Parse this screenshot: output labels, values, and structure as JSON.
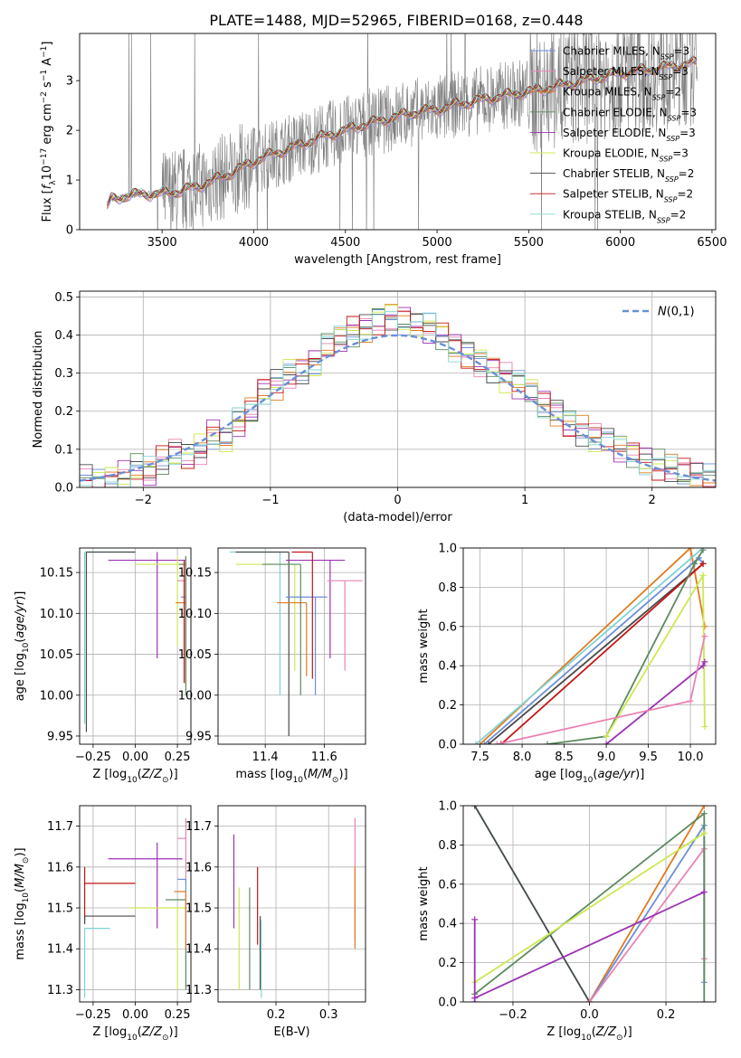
{
  "figure_title": "PLATE=1488, MJD=52965, FIBERID=0168, z=0.448",
  "colors": {
    "chabrier_miles": "#6a8fd8",
    "salpeter_miles": "#e883b4",
    "kroupa_miles": "#e07b1f",
    "chabrier_elodie": "#5b8a5e",
    "salpeter_elodie": "#9b32b3",
    "kroupa_elodie": "#cde84f",
    "chabrier_stelib": "#4a4a4a",
    "salpeter_stelib": "#c41515",
    "kroupa_stelib": "#7fd3d3",
    "data": "#808080",
    "gaussian": "#6a8fd8"
  },
  "chart_data": [
    {
      "id": "spectrum",
      "type": "line",
      "title": "PLATE=1488, MJD=52965, FIBERID=0168, z=0.448",
      "xlabel": "wavelength [Angstrom, rest frame]",
      "ylabel": "Flux [f_λ 10^-17 erg cm^-2 s^-1 A^-1]",
      "xlim": [
        3050,
        6520
      ],
      "ylim": [
        0,
        3.95
      ],
      "xticks": [
        3500,
        4000,
        4500,
        5000,
        5500,
        6000,
        6500
      ],
      "yticks": [
        0,
        1,
        2,
        3
      ],
      "legend_position": "upper-right",
      "model_curve": {
        "x": [
          3200,
          3220,
          3300,
          3400,
          3500,
          3600,
          3700,
          3800,
          3900,
          4000,
          4100,
          4200,
          4300,
          4400,
          4500,
          4600,
          4700,
          4800,
          4900,
          5000,
          5100,
          5200,
          5300,
          5400,
          5500,
          5600,
          5700,
          5800,
          5900,
          6000,
          6100,
          6200,
          6300,
          6400
        ],
        "y": [
          0.45,
          0.6,
          0.68,
          0.72,
          0.72,
          0.78,
          0.88,
          1.02,
          1.18,
          1.38,
          1.52,
          1.64,
          1.78,
          1.9,
          2.0,
          2.12,
          2.2,
          2.3,
          2.38,
          2.42,
          2.52,
          2.58,
          2.66,
          2.72,
          2.78,
          2.85,
          2.92,
          3.0,
          3.08,
          3.15,
          3.2,
          3.25,
          3.3,
          3.35
        ]
      },
      "series": [
        {
          "name": "Chabrier MILES, N_SSP=3",
          "color_key": "chabrier_miles"
        },
        {
          "name": "Salpeter MILES, N_SSP=3",
          "color_key": "salpeter_miles"
        },
        {
          "name": "Kroupa MILES, N_SSP=2",
          "color_key": "kroupa_miles"
        },
        {
          "name": "Chabrier ELODIE, N_SSP=3",
          "color_key": "chabrier_elodie"
        },
        {
          "name": "Salpeter ELODIE, N_SSP=3",
          "color_key": "salpeter_elodie"
        },
        {
          "name": "Kroupa ELODIE, N_SSP=3",
          "color_key": "kroupa_elodie"
        },
        {
          "name": "Chabrier STELIB, N_SSP=2",
          "color_key": "chabrier_stelib"
        },
        {
          "name": "Salpeter STELIB, N_SSP=2",
          "color_key": "salpeter_stelib"
        },
        {
          "name": "Kroupa STELIB, N_SSP=2",
          "color_key": "kroupa_stelib"
        }
      ]
    },
    {
      "id": "residuals",
      "type": "line",
      "xlabel": "(data-model)/error",
      "ylabel": "Normed distribution",
      "xlim": [
        -2.5,
        2.5
      ],
      "ylim": [
        0,
        0.515
      ],
      "xticks": [
        -2,
        -1,
        0,
        1,
        2
      ],
      "yticks": [
        0.0,
        0.1,
        0.2,
        0.3,
        0.4,
        0.5
      ],
      "grid": true,
      "legend_position": "upper-right",
      "legend_entry": "N(0,1)",
      "bin_width": 0.1,
      "bin_start": -2.5,
      "histogram_values": [
        0.02,
        0.01,
        0.02,
        0.03,
        0.05,
        0.04,
        0.07,
        0.09,
        0.08,
        0.1,
        0.14,
        0.13,
        0.17,
        0.2,
        0.25,
        0.27,
        0.3,
        0.31,
        0.33,
        0.37,
        0.39,
        0.41,
        0.42,
        0.44,
        0.45,
        0.44,
        0.43,
        0.42,
        0.4,
        0.37,
        0.35,
        0.33,
        0.31,
        0.29,
        0.27,
        0.25,
        0.22,
        0.2,
        0.17,
        0.15,
        0.13,
        0.12,
        0.1,
        0.09,
        0.07,
        0.06,
        0.05,
        0.04,
        0.03,
        0.02
      ]
    },
    {
      "id": "age-vs-Z",
      "type": "scatter",
      "xlabel": "Z [log10(Z/Z⊙)]",
      "ylabel": "age [log10(age/yr)]",
      "xlim": [
        -0.33,
        0.33
      ],
      "ylim": [
        9.94,
        10.18
      ],
      "xticks": [
        -0.25,
        0.0,
        0.25
      ],
      "yticks": [
        9.95,
        10.0,
        10.05,
        10.1,
        10.15
      ],
      "grid": true,
      "points": [
        {
          "color_key": "kroupa_stelib",
          "x": -0.3,
          "y": 10.175,
          "xerr": [
            0.0,
            0.3
          ],
          "yerr": [
            0.21,
            0.0
          ]
        },
        {
          "color_key": "chabrier_stelib",
          "x": -0.29,
          "y": 10.175,
          "xerr": [
            0.0,
            0.29
          ],
          "yerr": [
            0.22,
            0.0
          ]
        },
        {
          "color_key": "salpeter_elodie",
          "x": 0.13,
          "y": 10.165,
          "xerr": [
            0.29,
            0.17
          ],
          "yerr": [
            0.12,
            0.01
          ]
        },
        {
          "color_key": "kroupa_elodie",
          "x": 0.25,
          "y": 10.16,
          "xerr": [
            0.25,
            0.05
          ],
          "yerr": [
            0.1,
            0.01
          ]
        },
        {
          "color_key": "salpeter_miles",
          "x": 0.3,
          "y": 10.14,
          "xerr": [
            0.05,
            0.0
          ],
          "yerr": [
            0.1,
            0.03
          ]
        },
        {
          "color_key": "chabrier_miles",
          "x": 0.3,
          "y": 10.12,
          "xerr": [
            0.03,
            0.0
          ],
          "yerr": [
            0.1,
            0.05
          ]
        },
        {
          "color_key": "kroupa_miles",
          "x": 0.3,
          "y": 10.113,
          "xerr": [
            0.06,
            0.0
          ],
          "yerr": [
            0.1,
            0.05
          ]
        },
        {
          "color_key": "chabrier_elodie",
          "x": 0.3,
          "y": 10.16,
          "xerr": [
            0.04,
            0.0
          ],
          "yerr": [
            0.16,
            0.01
          ]
        },
        {
          "color_key": "salpeter_stelib",
          "x": 0.29,
          "y": 10.165,
          "xerr": [
            0.0,
            0.0
          ],
          "yerr": [
            0.15,
            0.0
          ]
        }
      ]
    },
    {
      "id": "age-vs-mass",
      "type": "scatter",
      "xlabel": "mass [log10(M/M⊙)]",
      "xlim": [
        11.24,
        11.74
      ],
      "ylim": [
        9.94,
        10.18
      ],
      "xticks": [
        11.4,
        11.6
      ],
      "yticks": [
        9.95,
        10.0,
        10.05,
        10.1,
        10.15
      ],
      "grid": true,
      "points": [
        {
          "color_key": "kroupa_stelib",
          "x": 11.45,
          "y": 10.175,
          "xerr": [
            0.17,
            0.0
          ],
          "yerr": [
            0.175,
            0.0
          ]
        },
        {
          "color_key": "chabrier_stelib",
          "x": 11.48,
          "y": 10.175,
          "xerr": [
            0.18,
            0.0
          ],
          "yerr": [
            0.225,
            0.0
          ]
        },
        {
          "color_key": "salpeter_elodie",
          "x": 11.62,
          "y": 10.165,
          "xerr": [
            0.15,
            0.05
          ],
          "yerr": [
            0.12,
            0.0
          ]
        },
        {
          "color_key": "kroupa_elodie",
          "x": 11.5,
          "y": 10.16,
          "xerr": [
            0.2,
            0.0
          ],
          "yerr": [
            0.13,
            0.0
          ]
        },
        {
          "color_key": "salpeter_miles",
          "x": 11.67,
          "y": 10.14,
          "xerr": [
            0.06,
            0.06
          ],
          "yerr": [
            0.11,
            0.0
          ]
        },
        {
          "color_key": "chabrier_miles",
          "x": 11.57,
          "y": 10.12,
          "xerr": [
            0.1,
            0.04
          ],
          "yerr": [
            0.12,
            0.0
          ]
        },
        {
          "color_key": "kroupa_miles",
          "x": 11.54,
          "y": 10.113,
          "xerr": [
            0.1,
            0.0
          ],
          "yerr": [
            0.09,
            0.0
          ]
        },
        {
          "color_key": "chabrier_elodie",
          "x": 11.52,
          "y": 10.16,
          "xerr": [
            0.13,
            0.0
          ],
          "yerr": [
            0.16,
            0.0
          ]
        },
        {
          "color_key": "salpeter_stelib",
          "x": 11.56,
          "y": 10.175,
          "xerr": [
            0.07,
            0.0
          ],
          "yerr": [
            0.155,
            0.0
          ]
        }
      ]
    },
    {
      "id": "weight-vs-age",
      "type": "line",
      "xlabel": "age [log10(age/yr)]",
      "ylabel": "mass weight",
      "xlim": [
        7.3,
        10.3
      ],
      "ylim": [
        0.0,
        1.0
      ],
      "xticks": [
        7.5,
        8.0,
        8.5,
        9.0,
        9.5,
        10.0
      ],
      "yticks": [
        0.0,
        0.2,
        0.4,
        0.6,
        0.8,
        1.0
      ],
      "grid": true,
      "series": [
        {
          "color_key": "kroupa_miles",
          "x": [
            7.5,
            10.0,
            10.17
          ],
          "y": [
            0.0,
            1.0,
            0.6
          ]
        },
        {
          "color_key": "kroupa_stelib",
          "x": [
            7.45,
            10.15
          ],
          "y": [
            0.0,
            1.0
          ]
        },
        {
          "color_key": "chabrier_miles",
          "x": [
            7.55,
            10.1,
            10.15
          ],
          "y": [
            0.0,
            0.95,
            0.92
          ]
        },
        {
          "color_key": "chabrier_stelib",
          "x": [
            7.6,
            10.15
          ],
          "y": [
            0.0,
            0.92
          ]
        },
        {
          "color_key": "salpeter_stelib",
          "x": [
            7.75,
            10.15
          ],
          "y": [
            0.0,
            0.92
          ]
        },
        {
          "color_key": "chabrier_elodie",
          "x": [
            8.3,
            9.0,
            10.05,
            10.15
          ],
          "y": [
            0.0,
            0.04,
            0.92,
            0.99
          ]
        },
        {
          "color_key": "kroupa_elodie",
          "x": [
            9.0,
            10.15,
            10.17
          ],
          "y": [
            0.04,
            0.86,
            0.09
          ]
        },
        {
          "color_key": "salpeter_elodie",
          "x": [
            9.0,
            10.15,
            10.17
          ],
          "y": [
            0.0,
            0.4,
            0.42
          ]
        },
        {
          "color_key": "salpeter_miles",
          "x": [
            7.7,
            10.0,
            10.17
          ],
          "y": [
            0.0,
            0.22,
            0.55
          ]
        }
      ]
    },
    {
      "id": "mass-vs-Z",
      "type": "scatter",
      "xlabel": "Z [log10(Z/Z⊙)]",
      "ylabel": "mass [log10(M/M⊙)]",
      "xlim": [
        -0.33,
        0.33
      ],
      "ylim": [
        11.27,
        11.75
      ],
      "xticks": [
        -0.25,
        0.0,
        0.25
      ],
      "yticks": [
        11.3,
        11.4,
        11.5,
        11.6,
        11.7
      ],
      "grid": true,
      "points": [
        {
          "color_key": "salpeter_stelib",
          "x": -0.3,
          "y": 11.56,
          "xerr": [
            0.0,
            0.3
          ],
          "yerr": [
            0.09,
            0.04
          ]
        },
        {
          "color_key": "chabrier_stelib",
          "x": -0.3,
          "y": 11.48,
          "xerr": [
            0.0,
            0.3
          ],
          "yerr": [
            0.02,
            0.0
          ]
        },
        {
          "color_key": "kroupa_stelib",
          "x": -0.3,
          "y": 11.45,
          "xerr": [
            0.0,
            0.15
          ],
          "yerr": [
            0.17,
            0.0
          ]
        },
        {
          "color_key": "salpeter_elodie",
          "x": 0.13,
          "y": 11.62,
          "xerr": [
            0.29,
            0.15
          ],
          "yerr": [
            0.17,
            0.04
          ]
        },
        {
          "color_key": "kroupa_elodie",
          "x": 0.25,
          "y": 11.5,
          "xerr": [
            0.28,
            0.05
          ],
          "yerr": [
            0.2,
            0.0
          ]
        },
        {
          "color_key": "chabrier_elodie",
          "x": 0.3,
          "y": 11.52,
          "xerr": [
            0.12,
            0.0
          ],
          "yerr": [
            0.22,
            0.0
          ]
        },
        {
          "color_key": "salpeter_miles",
          "x": 0.3,
          "y": 11.67,
          "xerr": [
            0.05,
            0.0
          ],
          "yerr": [
            0.11,
            0.05
          ]
        },
        {
          "color_key": "chabrier_miles",
          "x": 0.3,
          "y": 11.57,
          "xerr": [
            0.05,
            0.0
          ],
          "yerr": [
            0.1,
            0.0
          ]
        },
        {
          "color_key": "kroupa_miles",
          "x": 0.3,
          "y": 11.54,
          "xerr": [
            0.07,
            0.0
          ],
          "yerr": [
            0.14,
            0.0
          ]
        }
      ]
    },
    {
      "id": "mass-vs-EBV",
      "type": "scatter",
      "xlabel": "E(B-V)",
      "xlim": [
        0.09,
        0.37
      ],
      "ylim": [
        11.27,
        11.75
      ],
      "xticks": [
        0.2,
        0.3
      ],
      "yticks": [
        11.3,
        11.4,
        11.5,
        11.6,
        11.7
      ],
      "grid": true,
      "points": [
        {
          "color_key": "salpeter_elodie",
          "x": 0.12,
          "y": 11.6,
          "yerr": [
            0.15,
            0.08
          ]
        },
        {
          "color_key": "kroupa_elodie",
          "x": 0.13,
          "y": 11.45,
          "yerr": [
            0.15,
            0.1
          ]
        },
        {
          "color_key": "chabrier_elodie",
          "x": 0.15,
          "y": 11.45,
          "yerr": [
            0.15,
            0.1
          ]
        },
        {
          "color_key": "salpeter_stelib",
          "x": 0.165,
          "y": 11.55,
          "yerr": [
            0.14,
            0.05
          ]
        },
        {
          "color_key": "chabrier_stelib",
          "x": 0.17,
          "y": 11.4,
          "yerr": [
            0.1,
            0.08
          ]
        },
        {
          "color_key": "kroupa_stelib",
          "x": 0.172,
          "y": 11.4,
          "yerr": [
            0.12,
            0.07
          ]
        },
        {
          "color_key": "salpeter_miles",
          "x": 0.35,
          "y": 11.6,
          "yerr": [
            0.18,
            0.12
          ]
        },
        {
          "color_key": "kroupa_miles",
          "x": 0.35,
          "y": 11.5,
          "yerr": [
            0.1,
            0.1
          ]
        }
      ]
    },
    {
      "id": "weight-vs-Z",
      "type": "line",
      "xlabel": "Z [log10(Z/Z⊙)]",
      "ylabel": "mass weight",
      "xlim": [
        -0.33,
        0.33
      ],
      "ylim": [
        0.0,
        1.0
      ],
      "xticks": [
        -0.2,
        0.0,
        0.2
      ],
      "yticks": [
        0.0,
        0.2,
        0.4,
        0.6,
        0.8,
        1.0
      ],
      "grid": true,
      "series": [
        {
          "color_key": "kroupa_stelib",
          "x": [
            -0.3,
            0.0
          ],
          "y": [
            1.0,
            0.0
          ]
        },
        {
          "color_key": "chabrier_stelib",
          "x": [
            -0.3,
            0.0
          ],
          "y": [
            1.0,
            0.0
          ]
        },
        {
          "color_key": "kroupa_miles",
          "x": [
            0.0,
            0.3
          ],
          "y": [
            0.0,
            1.0
          ]
        },
        {
          "color_key": "chabrier_miles",
          "x": [
            0.0,
            0.3,
            0.3
          ],
          "y": [
            0.0,
            0.9,
            0.1
          ]
        },
        {
          "color_key": "salpeter_miles",
          "x": [
            0.0,
            0.3,
            0.3
          ],
          "y": [
            0.0,
            0.78,
            0.22
          ]
        },
        {
          "color_key": "chabrier_elodie",
          "x": [
            -0.3,
            0.3,
            0.3
          ],
          "y": [
            0.04,
            0.96,
            0.0
          ]
        },
        {
          "color_key": "kroupa_elodie",
          "x": [
            -0.3,
            0.3
          ],
          "y": [
            0.1,
            0.86
          ]
        },
        {
          "color_key": "salpeter_elodie",
          "x": [
            -0.3,
            0.3
          ],
          "y": [
            0.02,
            0.56
          ]
        },
        {
          "color_key": "salpeter_elodie",
          "x": [
            -0.3,
            -0.3
          ],
          "y": [
            0.0,
            0.42
          ]
        }
      ]
    }
  ]
}
